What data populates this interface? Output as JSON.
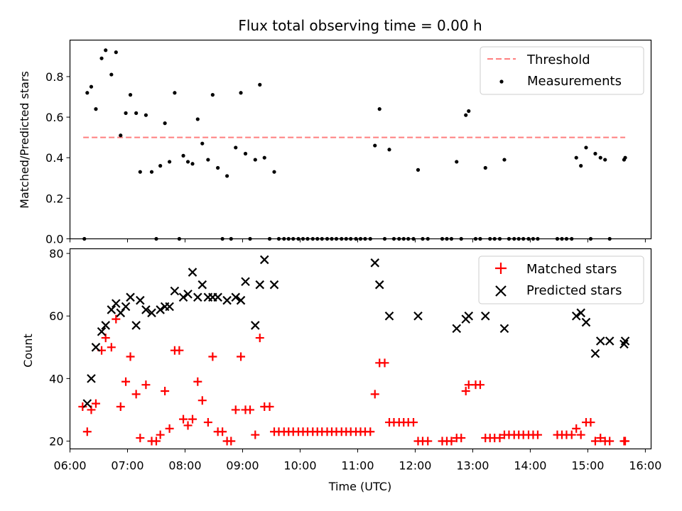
{
  "chart_data": [
    {
      "type": "scatter",
      "title": "Flux total observing time = 0.00 h",
      "xlabel": "",
      "ylabel": "Matched/Predicted stars",
      "xlim": [
        6.0,
        16.1
      ],
      "ylim": [
        0.0,
        0.98
      ],
      "yticks": [
        0.0,
        0.2,
        0.4,
        0.6,
        0.8
      ],
      "ytick_labels": [
        "0.0",
        "0.2",
        "0.4",
        "0.6",
        "0.8"
      ],
      "grid": false,
      "legend_position": "top-right",
      "threshold": {
        "name": "Threshold",
        "y": 0.5,
        "x_range": [
          6.23,
          15.65
        ],
        "color": "#ff7f7f"
      },
      "series": [
        {
          "name": "Measurements",
          "color": "#000000",
          "marker": "dot",
          "x": [
            6.25,
            6.3,
            6.37,
            6.45,
            6.55,
            6.62,
            6.72,
            6.8,
            6.88,
            6.97,
            7.05,
            7.15,
            7.22,
            7.32,
            7.42,
            7.5,
            7.57,
            7.65,
            7.73,
            7.82,
            7.9,
            7.97,
            8.05,
            8.13,
            8.22,
            8.3,
            8.4,
            8.48,
            8.57,
            8.65,
            8.73,
            8.8,
            8.88,
            8.97,
            9.05,
            9.13,
            9.22,
            9.3,
            9.38,
            9.47,
            9.55,
            9.63,
            9.72,
            9.8,
            9.88,
            9.97,
            10.05,
            10.13,
            10.22,
            10.3,
            10.38,
            10.47,
            10.55,
            10.63,
            10.72,
            10.8,
            10.88,
            10.97,
            11.05,
            11.13,
            11.22,
            11.3,
            11.38,
            11.47,
            11.55,
            11.63,
            11.72,
            11.8,
            11.88,
            11.97,
            12.05,
            12.13,
            12.22,
            12.47,
            12.55,
            12.63,
            12.72,
            12.8,
            12.88,
            12.93,
            13.05,
            13.13,
            13.22,
            13.3,
            13.38,
            13.47,
            13.55,
            13.63,
            13.72,
            13.8,
            13.88,
            13.97,
            14.05,
            14.13,
            14.47,
            14.55,
            14.63,
            14.72,
            14.8,
            14.88,
            14.97,
            15.05,
            15.13,
            15.22,
            15.3,
            15.38,
            15.63,
            15.65
          ],
          "y": [
            0.0,
            0.72,
            0.75,
            0.64,
            0.89,
            0.93,
            0.81,
            0.92,
            0.51,
            0.62,
            0.71,
            0.62,
            0.33,
            0.61,
            0.33,
            0.0,
            0.36,
            0.57,
            0.38,
            0.72,
            0.0,
            0.41,
            0.38,
            0.37,
            0.59,
            0.47,
            0.39,
            0.71,
            0.35,
            0.0,
            0.31,
            0.0,
            0.45,
            0.72,
            0.42,
            0.0,
            0.39,
            0.76,
            0.4,
            0.0,
            0.33,
            0.0,
            0.0,
            0.0,
            0.0,
            0.0,
            0.0,
            0.0,
            0.0,
            0.0,
            0.0,
            0.0,
            0.0,
            0.0,
            0.0,
            0.0,
            0.0,
            0.0,
            0.0,
            0.0,
            0.0,
            0.46,
            0.64,
            0.0,
            0.44,
            0.0,
            0.0,
            0.0,
            0.0,
            0.0,
            0.34,
            0.0,
            0.0,
            0.0,
            0.0,
            0.0,
            0.38,
            0.0,
            0.61,
            0.63,
            0.0,
            0.0,
            0.35,
            0.0,
            0.0,
            0.0,
            0.39,
            0.0,
            0.0,
            0.0,
            0.0,
            0.0,
            0.0,
            0.0,
            0.0,
            0.0,
            0.0,
            0.0,
            0.4,
            0.36,
            0.45,
            0.0,
            0.42,
            0.4,
            0.39,
            0.0,
            0.39,
            0.4
          ]
        }
      ]
    },
    {
      "type": "scatter",
      "title": "",
      "xlabel": "Time (UTC)",
      "ylabel": "Count",
      "xlim": [
        6.0,
        16.1
      ],
      "ylim": [
        17.5,
        81.5
      ],
      "yticks": [
        20,
        40,
        60,
        80
      ],
      "ytick_labels": [
        "20",
        "40",
        "60",
        "80"
      ],
      "xticks": [
        6,
        7,
        8,
        9,
        10,
        11,
        12,
        13,
        14,
        15,
        16
      ],
      "xtick_labels": [
        "06:00",
        "07:00",
        "08:00",
        "09:00",
        "10:00",
        "11:00",
        "12:00",
        "13:00",
        "14:00",
        "15:00",
        "16:00"
      ],
      "grid": false,
      "legend_position": "top-right",
      "series": [
        {
          "name": "Matched stars",
          "color": "#ff0000",
          "marker": "plus",
          "x": [
            6.22,
            6.3,
            6.37,
            6.45,
            6.55,
            6.62,
            6.72,
            6.8,
            6.88,
            6.97,
            7.05,
            7.15,
            7.22,
            7.32,
            7.42,
            7.5,
            7.57,
            7.65,
            7.73,
            7.82,
            7.9,
            7.97,
            8.05,
            8.13,
            8.22,
            8.3,
            8.4,
            8.48,
            8.57,
            8.65,
            8.73,
            8.8,
            8.88,
            8.97,
            9.05,
            9.13,
            9.22,
            9.3,
            9.38,
            9.47,
            9.55,
            9.63,
            9.72,
            9.8,
            9.88,
            9.97,
            10.05,
            10.13,
            10.22,
            10.3,
            10.38,
            10.47,
            10.55,
            10.63,
            10.72,
            10.8,
            10.88,
            10.97,
            11.05,
            11.13,
            11.22,
            11.3,
            11.38,
            11.47,
            11.55,
            11.63,
            11.72,
            11.8,
            11.88,
            11.97,
            12.05,
            12.13,
            12.22,
            12.47,
            12.55,
            12.63,
            12.72,
            12.8,
            12.88,
            12.93,
            13.05,
            13.13,
            13.22,
            13.3,
            13.38,
            13.47,
            13.55,
            13.63,
            13.72,
            13.8,
            13.88,
            13.97,
            14.05,
            14.13,
            14.47,
            14.55,
            14.63,
            14.72,
            14.8,
            14.88,
            14.97,
            15.05,
            15.13,
            15.22,
            15.3,
            15.38,
            15.63,
            15.65
          ],
          "y": [
            31,
            23,
            30,
            32,
            49,
            53,
            50,
            59,
            31,
            39,
            47,
            35,
            21,
            38,
            20,
            20,
            22,
            36,
            24,
            49,
            49,
            27,
            25,
            27,
            39,
            33,
            26,
            47,
            23,
            23,
            20,
            20,
            30,
            47,
            30,
            30,
            22,
            53,
            31,
            31,
            23,
            23,
            23,
            23,
            23,
            23,
            23,
            23,
            23,
            23,
            23,
            23,
            23,
            23,
            23,
            23,
            23,
            23,
            23,
            23,
            23,
            35,
            45,
            45,
            26,
            26,
            26,
            26,
            26,
            26,
            20,
            20,
            20,
            20,
            20,
            20,
            21,
            21,
            36,
            38,
            38,
            38,
            21,
            21,
            21,
            21,
            22,
            22,
            22,
            22,
            22,
            22,
            22,
            22,
            22,
            22,
            22,
            22,
            24,
            22,
            26,
            26,
            20,
            21,
            20,
            20,
            20,
            20
          ]
        },
        {
          "name": "Predicted stars",
          "color": "#000000",
          "marker": "x",
          "x": [
            6.3,
            6.37,
            6.45,
            6.55,
            6.62,
            6.72,
            6.8,
            6.88,
            6.97,
            7.05,
            7.15,
            7.22,
            7.32,
            7.42,
            7.57,
            7.65,
            7.73,
            7.82,
            7.97,
            8.05,
            8.13,
            8.22,
            8.3,
            8.4,
            8.48,
            8.57,
            8.73,
            8.88,
            8.97,
            9.05,
            9.22,
            9.3,
            9.38,
            9.55,
            11.3,
            11.38,
            11.55,
            12.05,
            12.72,
            12.88,
            12.93,
            13.22,
            13.55,
            14.8,
            14.88,
            14.97,
            15.13,
            15.22,
            15.38,
            15.63,
            15.65
          ],
          "y": [
            32,
            40,
            50,
            55,
            57,
            62,
            64,
            61,
            63,
            66,
            57,
            65,
            62,
            61,
            62,
            63,
            63,
            68,
            66,
            67,
            74,
            66,
            70,
            66,
            66,
            66,
            65,
            66,
            65,
            71,
            57,
            70,
            78,
            70,
            77,
            70,
            60,
            60,
            56,
            59,
            60,
            60,
            56,
            60,
            61,
            58,
            48,
            52,
            52,
            51,
            52
          ]
        }
      ]
    }
  ]
}
